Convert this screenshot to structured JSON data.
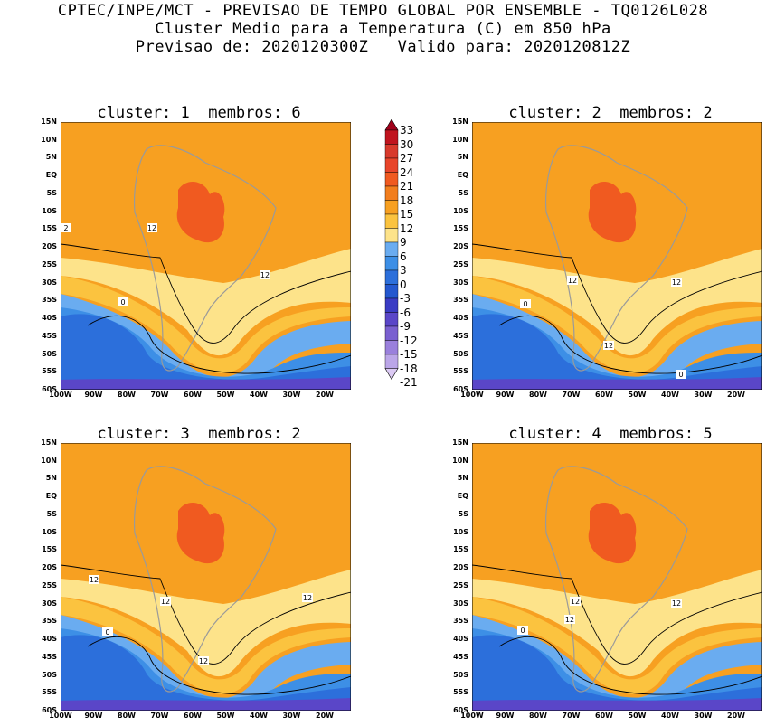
{
  "header": {
    "line1": "CPTEC/INPE/MCT - PREVISAO DE TEMPO GLOBAL POR ENSEMBLE - TQ0126L028",
    "line2": "Cluster Medio para a Temperatura (C) em 850 hPa",
    "line3": "Previsao de: 2020120300Z   Valido para: 2020120812Z"
  },
  "panels": [
    {
      "title": "cluster: 1  membros: 6"
    },
    {
      "title": "cluster: 2  membros: 2"
    },
    {
      "title": "cluster: 3  membros: 2"
    },
    {
      "title": "cluster: 4  membros: 5"
    }
  ],
  "lat_ticks": [
    "15N",
    "10N",
    "5N",
    "EQ",
    "5S",
    "10S",
    "15S",
    "20S",
    "25S",
    "30S",
    "35S",
    "40S",
    "45S",
    "50S",
    "55S",
    "60S"
  ],
  "lon_ticks": [
    "100W",
    "90W",
    "80W",
    "70W",
    "60W",
    "50W",
    "40W",
    "30W",
    "20W"
  ],
  "colorbar": {
    "labels": [
      "33",
      "30",
      "27",
      "24",
      "21",
      "18",
      "15",
      "12",
      "9",
      "6",
      "3",
      "0",
      "-3",
      "-6",
      "-9",
      "-12",
      "-15",
      "-18",
      "-21"
    ],
    "colors": [
      "#a0001a",
      "#c0141e",
      "#d83a2c",
      "#e8452a",
      "#f05a20",
      "#f27e1e",
      "#f7a021",
      "#fbc33f",
      "#fde38a",
      "#6aacf0",
      "#3d8fe6",
      "#2c6fdb",
      "#2458cf",
      "#3a3cc4",
      "#5a46c8",
      "#7a60d0",
      "#9a80dc",
      "#bba6e8",
      "#dccaf4"
    ]
  },
  "contour_labels": {
    "p1": [
      "12",
      "12",
      "0",
      "2"
    ],
    "p2": [
      "12",
      "12",
      "12",
      "0",
      "0"
    ],
    "p3": [
      "12",
      "12",
      "12",
      "12",
      "0"
    ],
    "p4": [
      "12",
      "12",
      "12",
      "0"
    ]
  },
  "map_colors": {
    "warm_orange": "#f7a021",
    "hot": "#f05a20",
    "yellow": "#fde38a",
    "light_orange": "#fbc33f",
    "light_blue": "#6aacf0",
    "blue": "#3d8fe6",
    "dark_blue": "#2c6fdb",
    "purple": "#5a46c8",
    "land": "#9a9a9a"
  }
}
